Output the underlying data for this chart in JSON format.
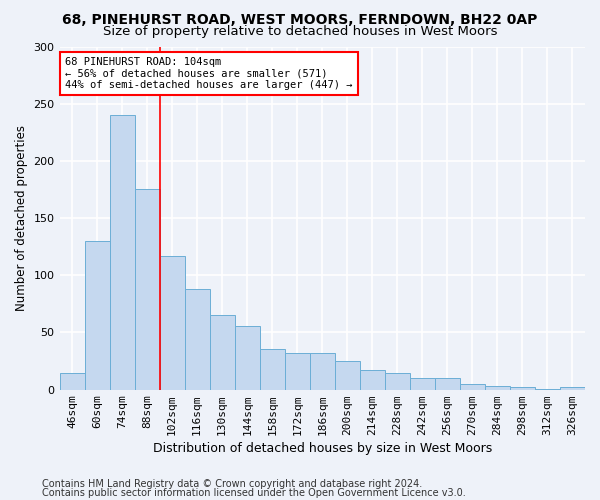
{
  "title1": "68, PINEHURST ROAD, WEST MOORS, FERNDOWN, BH22 0AP",
  "title2": "Size of property relative to detached houses in West Moors",
  "xlabel": "Distribution of detached houses by size in West Moors",
  "ylabel": "Number of detached properties",
  "categories": [
    "46sqm",
    "60sqm",
    "74sqm",
    "88sqm",
    "102sqm",
    "116sqm",
    "130sqm",
    "144sqm",
    "158sqm",
    "172sqm",
    "186sqm",
    "200sqm",
    "214sqm",
    "228sqm",
    "242sqm",
    "256sqm",
    "270sqm",
    "284sqm",
    "298sqm",
    "312sqm",
    "326sqm"
  ],
  "values": [
    15,
    130,
    240,
    175,
    117,
    88,
    65,
    56,
    36,
    32,
    32,
    25,
    17,
    15,
    10,
    10,
    5,
    3,
    2,
    1,
    2
  ],
  "bar_color": "#c5d8ef",
  "bar_edge_color": "#6baed6",
  "highlight_line_index": 4,
  "highlight_line_color": "red",
  "annotation_text": "68 PINEHURST ROAD: 104sqm\n← 56% of detached houses are smaller (571)\n44% of semi-detached houses are larger (447) →",
  "annotation_box_facecolor": "white",
  "annotation_box_edgecolor": "red",
  "ylim": [
    0,
    300
  ],
  "yticks": [
    0,
    50,
    100,
    150,
    200,
    250,
    300
  ],
  "footer1": "Contains HM Land Registry data © Crown copyright and database right 2024.",
  "footer2": "Contains public sector information licensed under the Open Government Licence v3.0.",
  "background_color": "#eef2f9",
  "grid_color": "white",
  "title1_fontsize": 10,
  "title2_fontsize": 9.5,
  "xlabel_fontsize": 9,
  "ylabel_fontsize": 8.5,
  "tick_fontsize": 8,
  "annotation_fontsize": 7.5,
  "footer_fontsize": 7
}
